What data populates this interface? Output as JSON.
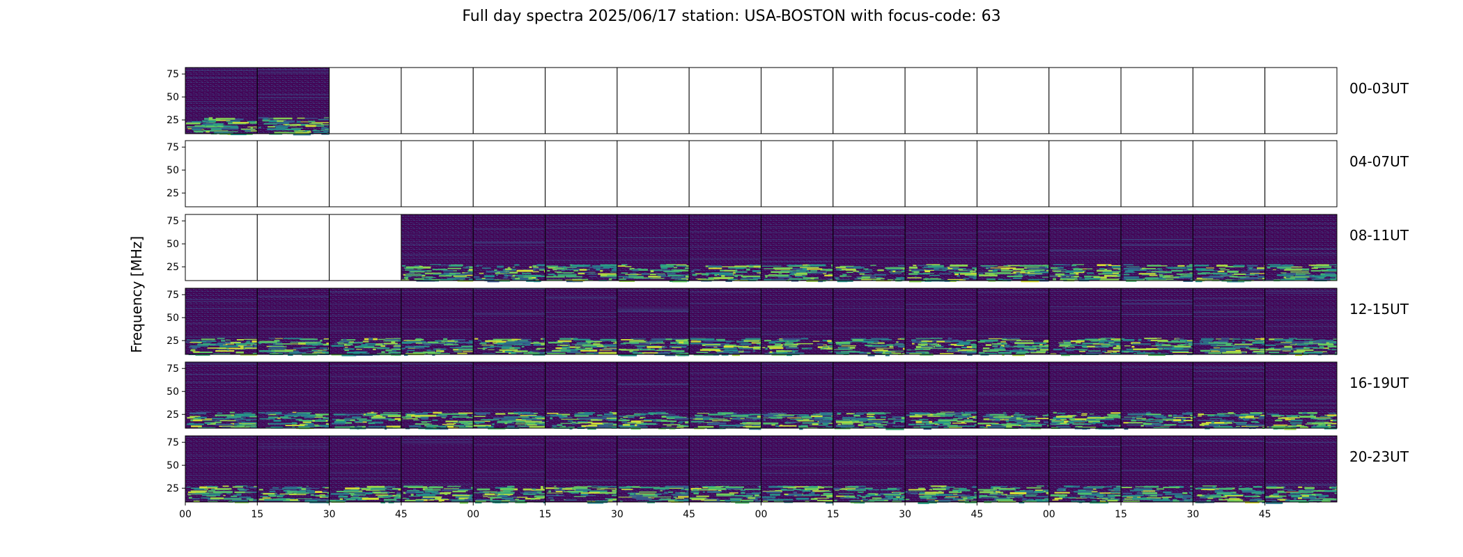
{
  "title": "Full day spectra 2025/06/17 station: USA-BOSTON with focus-code: 63",
  "chart_data": {
    "type": "heatmap",
    "title": "Full day spectra 2025/06/17 station: USA-BOSTON with focus-code: 63",
    "ylabel": "Frequency [MHz]",
    "yticks": [
      "75",
      "50",
      "25"
    ],
    "ytick_values": [
      75,
      50,
      25
    ],
    "ylim": [
      10,
      82
    ],
    "xticks": [
      "00",
      "15",
      "30",
      "45",
      "00",
      "15",
      "30",
      "45",
      "00",
      "15",
      "30",
      "45",
      "00",
      "15",
      "30",
      "45"
    ],
    "rows": [
      {
        "label": "00-03UT",
        "panels": [
          "data",
          "data",
          "empty",
          "empty",
          "empty",
          "empty",
          "empty",
          "empty",
          "empty",
          "empty",
          "empty",
          "empty",
          "empty",
          "empty",
          "empty",
          "empty"
        ]
      },
      {
        "label": "04-07UT",
        "panels": [
          "empty",
          "empty",
          "empty",
          "empty",
          "empty",
          "empty",
          "empty",
          "empty",
          "empty",
          "empty",
          "empty",
          "empty",
          "empty",
          "empty",
          "empty",
          "empty"
        ]
      },
      {
        "label": "08-11UT",
        "panels": [
          "empty",
          "empty",
          "empty",
          "data",
          "data",
          "data",
          "data",
          "data",
          "data",
          "data",
          "data",
          "data",
          "data",
          "data",
          "data",
          "data"
        ]
      },
      {
        "label": "12-15UT",
        "panels": [
          "data",
          "data",
          "data",
          "data",
          "data",
          "data",
          "data",
          "data",
          "data",
          "data",
          "data",
          "data",
          "data",
          "data",
          "data",
          "data"
        ]
      },
      {
        "label": "16-19UT",
        "panels": [
          "data",
          "data",
          "data",
          "data",
          "data",
          "data",
          "data",
          "data",
          "data",
          "data",
          "data",
          "data",
          "data",
          "data",
          "data",
          "data"
        ]
      },
      {
        "label": "20-23UT",
        "panels": [
          "data",
          "data",
          "data",
          "data",
          "data",
          "data",
          "data",
          "data",
          "data",
          "data",
          "data",
          "data",
          "data",
          "data",
          "data",
          "data"
        ]
      }
    ],
    "colormap": [
      "#440154",
      "#3b528b",
      "#21918c",
      "#5ec962",
      "#fde725"
    ],
    "empty_color": "#ffffff"
  }
}
